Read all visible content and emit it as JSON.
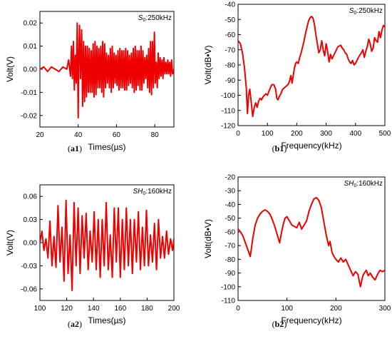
{
  "chart_data": [
    {
      "type": "line",
      "id": "a1",
      "caption_letter": "a",
      "caption_digit": "1",
      "annotation": {
        "italic": "S",
        "sub": "0",
        "rest": ":250kHz"
      },
      "xlabel": "Times(µs)",
      "ylabel": "Volt(V)",
      "xlim": [
        20,
        90
      ],
      "ylim": [
        -0.025,
        0.025
      ],
      "xticks": [
        20,
        40,
        60,
        80
      ],
      "yticks": [
        -0.02,
        -0.01,
        0.0,
        0.01,
        0.02
      ],
      "ytick_labels": [
        "-0.02",
        "-0.01",
        "0.00",
        "0.01",
        "0.02"
      ],
      "line_color": "#ee0000",
      "series": [
        {
          "x": [
            20,
            22,
            24,
            26,
            28,
            30,
            32,
            34,
            35,
            36,
            36.5,
            37,
            37.5,
            38,
            38.5,
            39,
            39.5,
            40,
            40.3,
            40.7,
            41.2,
            41.8,
            42.3,
            42.8,
            43.3,
            43.8,
            44.3,
            44.8,
            45.3,
            45.8,
            46.3,
            46.8,
            47.3,
            47.8,
            48.3,
            48.8,
            49.3,
            49.8,
            50.3,
            50.8,
            51.3,
            51.8,
            52.3,
            52.8,
            53.3,
            53.8,
            54.3,
            54.8,
            55.3,
            55.8,
            56.3,
            56.8,
            57.3,
            57.8,
            58.3,
            58.8,
            59.3,
            59.8,
            60.3,
            60.8,
            61.3,
            61.8,
            62.3,
            62.8,
            63.3,
            63.8,
            64.3,
            64.8,
            65.3,
            65.8,
            66.3,
            66.8,
            67.3,
            67.8,
            68.3,
            68.8,
            69.3,
            69.8,
            70.3,
            70.8,
            71.3,
            71.8,
            72.3,
            72.8,
            73.3,
            73.8,
            74.3,
            74.8,
            75.3,
            75.8,
            76.3,
            76.8,
            77.3,
            77.8,
            78.3,
            78.8,
            79.3,
            79.8,
            80.3,
            80.8,
            81.3,
            81.8,
            82.3,
            82.8,
            83.3,
            83.8,
            84.3,
            84.8,
            85.3,
            85.8,
            86.3,
            86.8,
            87.3,
            87.8,
            88.3,
            88.8,
            89.3,
            90
          ],
          "y": [
            0.0,
            0.001,
            -0.001,
            0.001,
            0.0,
            -0.001,
            0.001,
            0.0,
            0.004,
            -0.003,
            0.01,
            -0.004,
            0.012,
            -0.009,
            0.006,
            -0.006,
            0.02,
            -0.021,
            0.004,
            0.019,
            -0.004,
            0.017,
            -0.016,
            0.012,
            -0.014,
            0.01,
            -0.012,
            0.01,
            -0.01,
            0.009,
            -0.01,
            0.008,
            -0.01,
            0.011,
            -0.012,
            0.012,
            -0.011,
            0.01,
            -0.008,
            0.009,
            -0.008,
            0.01,
            -0.01,
            0.012,
            -0.012,
            0.011,
            -0.008,
            0.007,
            -0.006,
            0.006,
            -0.008,
            0.009,
            -0.01,
            0.01,
            -0.008,
            0.007,
            -0.006,
            0.006,
            -0.007,
            0.008,
            -0.009,
            0.009,
            -0.008,
            0.008,
            -0.008,
            0.008,
            -0.009,
            0.009,
            -0.009,
            0.008,
            -0.007,
            0.006,
            -0.006,
            0.007,
            -0.008,
            0.009,
            -0.01,
            0.01,
            -0.009,
            0.008,
            -0.007,
            0.008,
            -0.009,
            0.01,
            -0.009,
            0.008,
            -0.006,
            0.005,
            -0.004,
            0.006,
            -0.008,
            0.009,
            -0.01,
            0.012,
            -0.011,
            0.012,
            -0.008,
            0.016,
            -0.006,
            0.003,
            -0.008,
            0.007,
            -0.004,
            0.005,
            -0.003,
            0.004,
            -0.004,
            0.005,
            -0.002,
            0.003,
            -0.002,
            0.004,
            -0.002,
            0.003,
            -0.003,
            0.004,
            -0.002,
            0.0
          ]
        }
      ]
    },
    {
      "type": "line",
      "id": "b1",
      "caption_letter": "b",
      "caption_digit": "1",
      "annotation": {
        "italic": "S",
        "sub": "0",
        "rest": ":250kHz"
      },
      "xlabel": "Frequency(kHz)",
      "ylabel": "Volt(dB•V)",
      "xlim": [
        0,
        500
      ],
      "ylim": [
        -120,
        -40
      ],
      "xticks": [
        0,
        100,
        200,
        300,
        400,
        500
      ],
      "yticks": [
        -120,
        -110,
        -100,
        -90,
        -80,
        -70,
        -60,
        -50,
        -40
      ],
      "ytick_labels": [
        "-120",
        "-110",
        "-100",
        "-90",
        "-80",
        "-70",
        "-60",
        "-50",
        "-40"
      ],
      "line_color": "#ee0000",
      "series": [
        {
          "x": [
            0,
            8,
            15,
            22,
            28,
            32,
            36,
            40,
            44,
            50,
            55,
            60,
            65,
            70,
            75,
            80,
            85,
            90,
            95,
            100,
            108,
            115,
            122,
            128,
            132,
            136,
            140,
            146,
            152,
            158,
            164,
            170,
            175,
            180,
            184,
            188,
            192,
            196,
            200,
            205,
            210,
            215,
            220,
            225,
            230,
            235,
            240,
            245,
            250,
            255,
            260,
            265,
            270,
            275,
            280,
            285,
            290,
            295,
            300,
            305,
            310,
            315,
            320,
            330,
            340,
            350,
            355,
            360,
            365,
            370,
            375,
            380,
            385,
            390,
            395,
            400,
            410,
            420,
            425,
            430,
            435,
            440,
            445,
            450,
            455,
            460,
            465,
            470,
            475,
            480,
            485,
            490,
            495,
            500
          ],
          "y": [
            -64,
            -66,
            -72,
            -82,
            -95,
            -112,
            -100,
            -96,
            -103,
            -114,
            -108,
            -105,
            -108,
            -104,
            -102,
            -103,
            -101,
            -100,
            -99,
            -100,
            -96,
            -93,
            -93,
            -96,
            -102,
            -103,
            -101,
            -99,
            -96,
            -95,
            -94,
            -93,
            -91,
            -87,
            -92,
            -87,
            -82,
            -79,
            -78,
            -79,
            -75,
            -72,
            -68,
            -64,
            -59,
            -55,
            -51,
            -49,
            -48,
            -49,
            -53,
            -60,
            -66,
            -72,
            -70,
            -64,
            -70,
            -74,
            -66,
            -71,
            -78,
            -73,
            -76,
            -72,
            -68,
            -67,
            -69,
            -70,
            -72,
            -73,
            -76,
            -78,
            -79,
            -77,
            -80,
            -79,
            -75,
            -72,
            -70,
            -75,
            -71,
            -68,
            -63,
            -66,
            -71,
            -69,
            -62,
            -64,
            -65,
            -58,
            -62,
            -57,
            -54,
            -55
          ]
        }
      ]
    },
    {
      "type": "line",
      "id": "a2",
      "caption_letter": "a",
      "caption_digit": "2",
      "annotation": {
        "italic": "SH",
        "sub": "0",
        "rest": ":160kHz"
      },
      "xlabel": "Times(µs)",
      "ylabel": "Volt(V)",
      "xlim": [
        100,
        200
      ],
      "ylim": [
        -0.075,
        0.075
      ],
      "xticks": [
        100,
        120,
        140,
        160,
        180,
        200
      ],
      "yticks": [
        -0.06,
        -0.03,
        0.0,
        0.03,
        0.06
      ],
      "ytick_labels": [
        "-0.06",
        "-0.03",
        "0.00",
        "0.03",
        "0.06"
      ],
      "line_color": "#ee0000",
      "series": [
        {
          "x": [
            100,
            101.5,
            103,
            104.5,
            106,
            107.5,
            109,
            110.5,
            112,
            113.5,
            115,
            116.5,
            118,
            119.5,
            121,
            122.5,
            124,
            125.5,
            127,
            128.5,
            130,
            131.5,
            133,
            134.5,
            136,
            137.5,
            139,
            140.5,
            142,
            143.5,
            145,
            146.5,
            148,
            149.5,
            151,
            152.5,
            154,
            155.5,
            157,
            158.5,
            160,
            161.5,
            163,
            164.5,
            166,
            167.5,
            169,
            170.5,
            172,
            173.5,
            175,
            176.5,
            178,
            179.5,
            181,
            182.5,
            184,
            185.5,
            187,
            188.5,
            190,
            191.5,
            193,
            194.5,
            196,
            197.5,
            199,
            200
          ],
          "y": [
            0.0,
            0.015,
            -0.01,
            0.005,
            -0.02,
            0.028,
            -0.03,
            0.008,
            -0.032,
            0.048,
            -0.025,
            0.02,
            -0.05,
            0.055,
            -0.04,
            0.01,
            -0.062,
            0.052,
            -0.03,
            0.045,
            -0.04,
            0.035,
            -0.02,
            0.038,
            -0.035,
            0.015,
            -0.025,
            0.04,
            -0.035,
            0.03,
            -0.045,
            0.03,
            -0.03,
            0.052,
            -0.035,
            0.01,
            -0.045,
            0.045,
            -0.025,
            0.045,
            -0.045,
            0.03,
            -0.035,
            0.045,
            -0.03,
            0.03,
            -0.04,
            0.03,
            -0.025,
            0.04,
            -0.035,
            0.02,
            -0.03,
            0.042,
            -0.03,
            0.01,
            -0.025,
            0.025,
            -0.035,
            0.03,
            -0.02,
            0.008,
            -0.02,
            0.015,
            -0.015,
            0.005,
            -0.01,
            0.005
          ]
        }
      ]
    },
    {
      "type": "line",
      "id": "b2",
      "caption_letter": "b",
      "caption_digit": "2",
      "annotation": {
        "italic": "SH",
        "sub": "0",
        "rest": ":160kHz"
      },
      "xlabel": "Frequency(kHz)",
      "ylabel": "Volt(dB•V)",
      "xlim": [
        0,
        300
      ],
      "ylim": [
        -110,
        -20
      ],
      "xticks": [
        0,
        100,
        200,
        300
      ],
      "yticks": [
        -110,
        -100,
        -90,
        -80,
        -70,
        -60,
        -50,
        -40,
        -30,
        -20
      ],
      "ytick_labels": [
        "-110",
        "-100",
        "-90",
        "-80",
        "-70",
        "-60",
        "-50",
        "-40",
        "-30",
        "-20"
      ],
      "line_color": "#ee0000",
      "series": [
        {
          "x": [
            0,
            5,
            10,
            15,
            20,
            25,
            30,
            35,
            40,
            45,
            50,
            55,
            60,
            65,
            70,
            75,
            80,
            85,
            88,
            92,
            96,
            100,
            105,
            110,
            115,
            120,
            125,
            130,
            135,
            140,
            145,
            150,
            155,
            160,
            165,
            170,
            175,
            180,
            185,
            188,
            192,
            196,
            200,
            205,
            210,
            215,
            220,
            225,
            230,
            235,
            240,
            245,
            250,
            255,
            258,
            262,
            266,
            270,
            275,
            280,
            285,
            290,
            295,
            300
          ],
          "y": [
            -58,
            -60,
            -63,
            -68,
            -73,
            -78,
            -65,
            -55,
            -50,
            -47,
            -45,
            -44,
            -45,
            -47,
            -51,
            -56,
            -62,
            -68,
            -62,
            -55,
            -50,
            -49,
            -52,
            -55,
            -56,
            -57,
            -53,
            -58,
            -55,
            -52,
            -45,
            -40,
            -36,
            -35,
            -37,
            -42,
            -52,
            -62,
            -70,
            -67,
            -75,
            -78,
            -80,
            -82,
            -79,
            -82,
            -80,
            -84,
            -88,
            -92,
            -89,
            -91,
            -100,
            -92,
            -90,
            -88,
            -92,
            -90,
            -93,
            -95,
            -91,
            -88,
            -89,
            -88
          ]
        }
      ]
    }
  ]
}
